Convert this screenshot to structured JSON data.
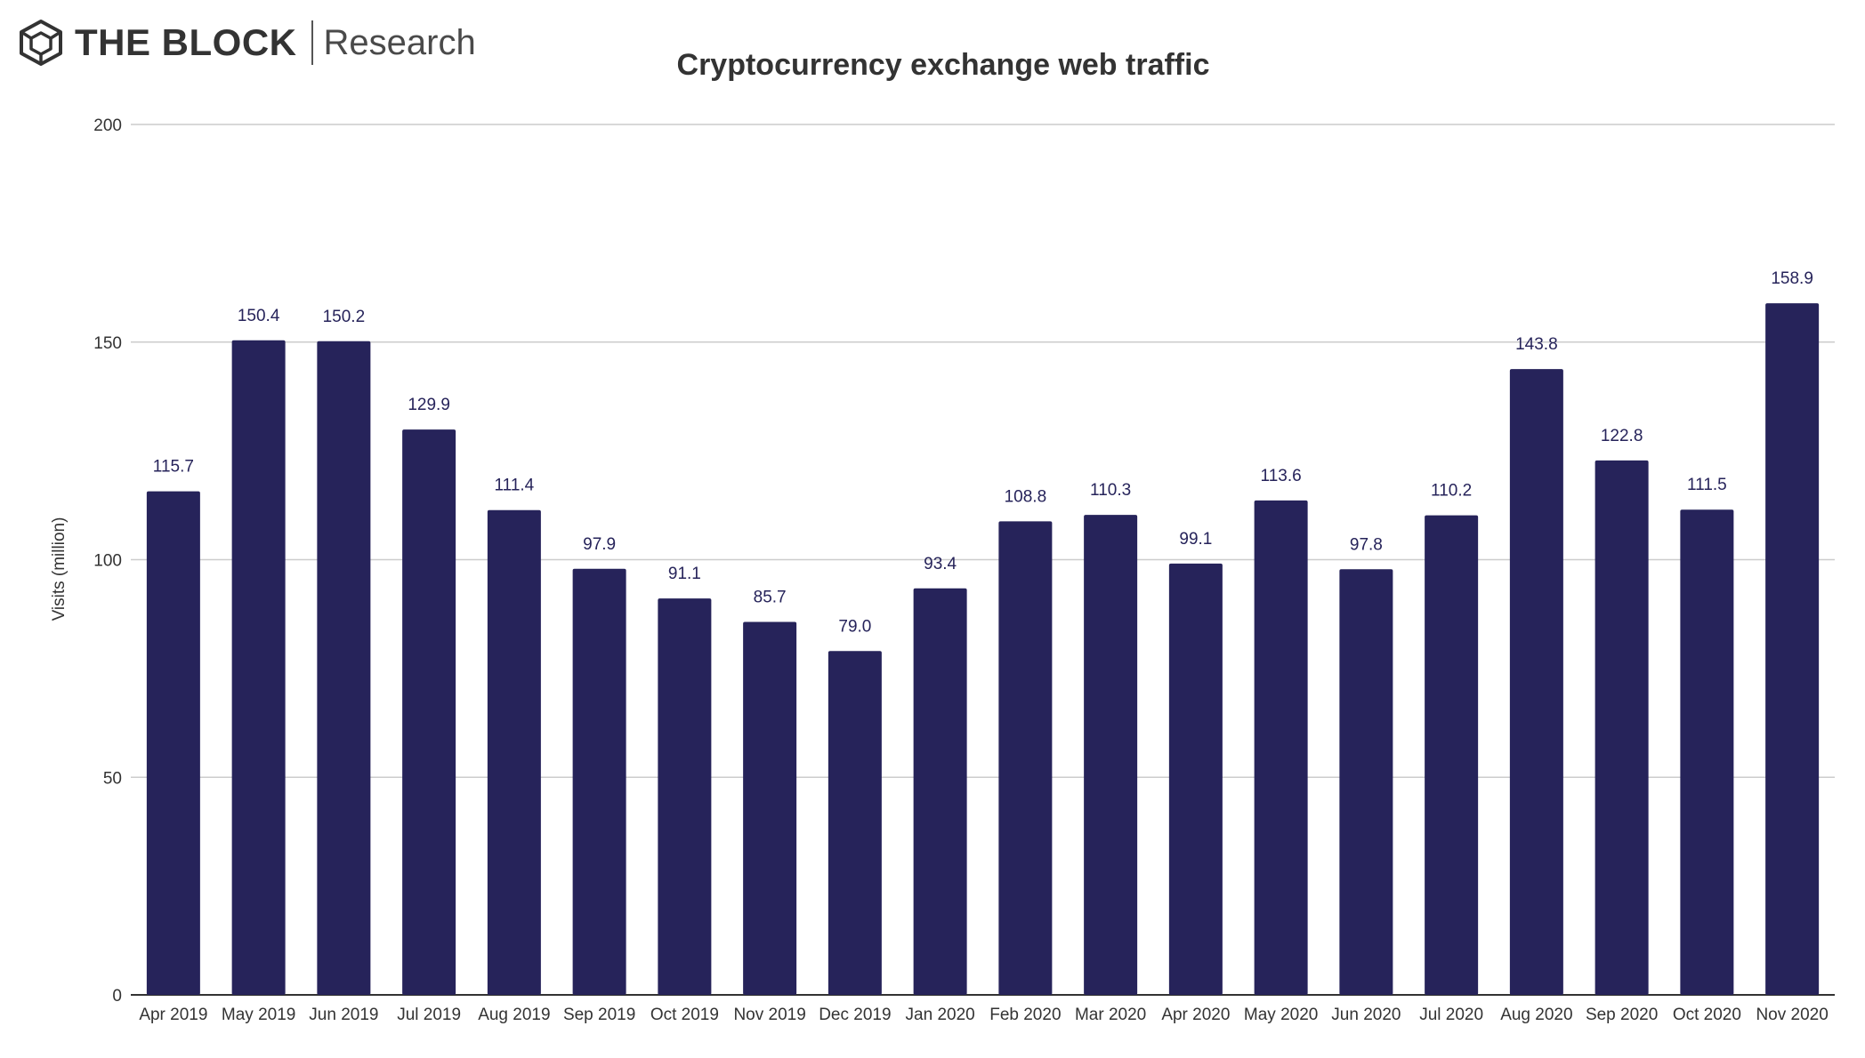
{
  "logo": {
    "brand": "THE BLOCK",
    "sub": "Research"
  },
  "chart_data": {
    "type": "bar",
    "title": "Cryptocurrency exchange web traffic",
    "xlabel": "",
    "ylabel": "Visits (million)",
    "ylim": [
      0,
      200
    ],
    "yticks": [
      0,
      50,
      100,
      150,
      200
    ],
    "grid": true,
    "bar_color": "#26235a",
    "categories": [
      "Apr 2019",
      "May 2019",
      "Jun 2019",
      "Jul 2019",
      "Aug 2019",
      "Sep 2019",
      "Oct 2019",
      "Nov 2019",
      "Dec 2019",
      "Jan 2020",
      "Feb 2020",
      "Mar 2020",
      "Apr 2020",
      "May 2020",
      "Jun 2020",
      "Jul 2020",
      "Aug 2020",
      "Sep 2020",
      "Oct 2020",
      "Nov 2020"
    ],
    "values": [
      115.7,
      150.4,
      150.2,
      129.9,
      111.4,
      97.9,
      91.1,
      85.7,
      79.0,
      93.4,
      108.8,
      110.3,
      99.1,
      113.6,
      97.8,
      110.2,
      143.8,
      122.8,
      111.5,
      158.9
    ],
    "data_labels": [
      "115.7",
      "150.4",
      "150.2",
      "129.9",
      "111.4",
      "97.9",
      "91.1",
      "85.7",
      "79.0",
      "93.4",
      "108.8",
      "110.3",
      "99.1",
      "113.6",
      "97.8",
      "110.2",
      "143.8",
      "122.8",
      "111.5",
      "158.9"
    ]
  }
}
